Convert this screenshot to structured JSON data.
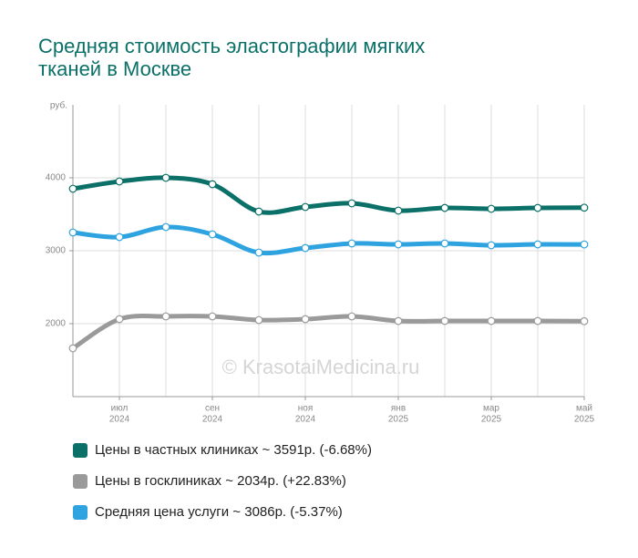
{
  "chart_data": {
    "type": "line",
    "title_lines": [
      "Средняя стоимость эластографии мягких",
      "тканей в Москве"
    ],
    "y_unit": "руб.",
    "watermark": "© KrasotaiMedicina.ru",
    "categories": [
      null,
      "июл",
      null,
      "сен",
      null,
      "ноя",
      null,
      "янв",
      null,
      "мар",
      null,
      "май"
    ],
    "category_years": [
      null,
      "2024",
      null,
      "2024",
      null,
      "2024",
      null,
      "2025",
      null,
      "2025",
      null,
      "2025"
    ],
    "ylim": [
      1000,
      5000
    ],
    "yticks": [
      2000,
      3000,
      4000
    ],
    "grid": true,
    "series": [
      {
        "name": "Цены в частных клиниках ~ 3591р. (-6.68%)",
        "color": "#0b7068",
        "values": [
          3850,
          3950,
          4000,
          3912,
          3537,
          3600,
          3650,
          3550,
          3587,
          3575,
          3587,
          3591
        ]
      },
      {
        "name": "Цены в госклиниках ~ 2034р. (+22.83%)",
        "color": "#9a9a9a",
        "values": [
          1662,
          2062,
          2100,
          2100,
          2050,
          2062,
          2100,
          2037,
          2037,
          2037,
          2037,
          2034
        ]
      },
      {
        "name": "Средняя цена услуги ~ 3086р. (-5.37%)",
        "color": "#2ea3e0",
        "values": [
          3250,
          3187,
          3325,
          3225,
          2975,
          3037,
          3100,
          3087,
          3100,
          3075,
          3087,
          3086
        ]
      }
    ]
  }
}
